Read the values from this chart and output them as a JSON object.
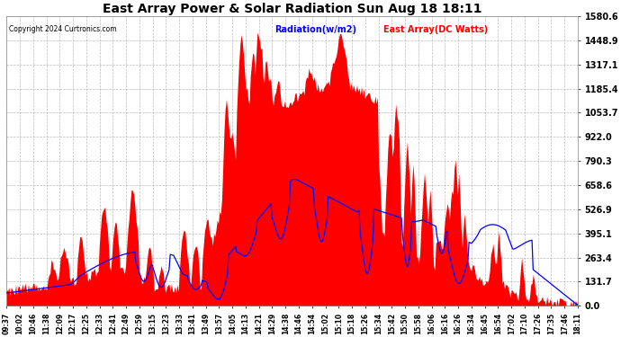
{
  "title": "East Array Power & Solar Radiation Sun Aug 18 18:11",
  "copyright": "Copyright 2024 Curtronics.com",
  "legend_radiation": "Radiation(w/m2)",
  "legend_east": "East Array(DC Watts)",
  "radiation_color": "blue",
  "east_color": "red",
  "background_color": "#ffffff",
  "plot_bg_color": "#ffffff",
  "grid_color": "#aaaaaa",
  "ytick_labels": [
    "0.0",
    "131.7",
    "263.4",
    "395.1",
    "526.9",
    "658.6",
    "790.3",
    "922.0",
    "1053.7",
    "1185.4",
    "1317.1",
    "1448.9",
    "1580.6"
  ],
  "ytick_values": [
    0.0,
    131.7,
    263.4,
    395.1,
    526.9,
    658.6,
    790.3,
    922.0,
    1053.7,
    1185.4,
    1317.1,
    1448.9,
    1580.6
  ],
  "ymax": 1580.6,
  "ymin": 0.0,
  "time_labels": [
    "09:37",
    "10:02",
    "10:46",
    "11:38",
    "12:09",
    "12:17",
    "12:25",
    "12:33",
    "12:41",
    "12:49",
    "12:59",
    "13:15",
    "13:23",
    "13:33",
    "13:41",
    "13:49",
    "13:57",
    "14:05",
    "14:13",
    "14:21",
    "14:29",
    "14:38",
    "14:46",
    "14:54",
    "15:02",
    "15:10",
    "15:18",
    "15:26",
    "15:34",
    "15:42",
    "15:50",
    "15:58",
    "16:06",
    "16:16",
    "16:26",
    "16:34",
    "16:45",
    "16:54",
    "17:02",
    "17:10",
    "17:26",
    "17:35",
    "17:46",
    "18:11"
  ]
}
